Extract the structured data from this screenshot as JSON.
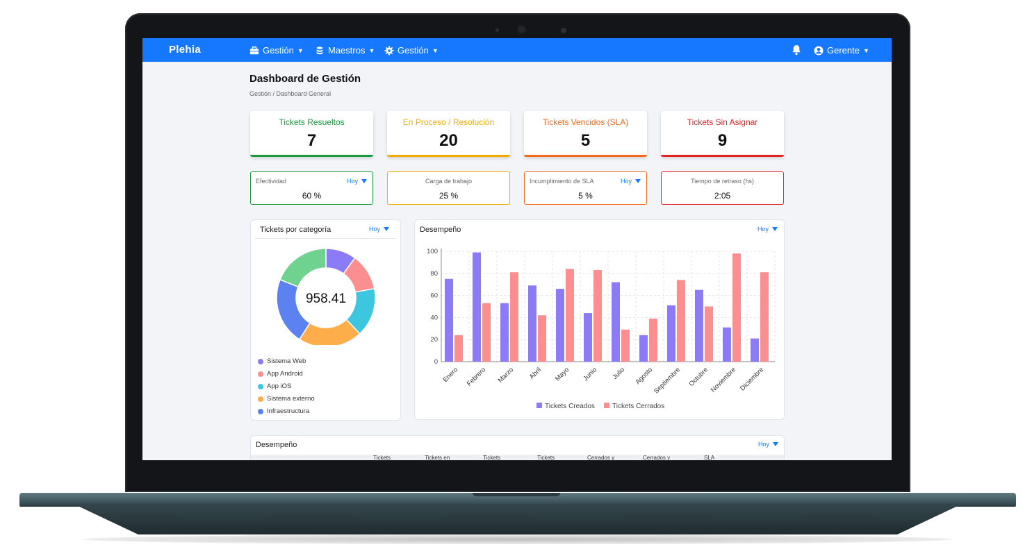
{
  "nav": {
    "brand": "Plehia",
    "items": [
      {
        "label": "Gestión",
        "icon": "briefcase-icon"
      },
      {
        "label": "Maestros",
        "icon": "database-icon"
      },
      {
        "label": "Gestión",
        "icon": "gear-icon"
      }
    ],
    "user": "Gerente"
  },
  "page": {
    "title": "Dashboard de Gestión",
    "breadcrumb": "Gestión / Dashboard General"
  },
  "kpis": [
    {
      "label": "Tickets Resueltos",
      "value": "7",
      "color": "#1a9a3e"
    },
    {
      "label": "En Proceso / Resolución",
      "value": "20",
      "color": "#f0ad00"
    },
    {
      "label": "Tickets Vencidos (SLA)",
      "value": "5",
      "color": "#f26a1b"
    },
    {
      "label": "Tickets Sin Asignar",
      "value": "9",
      "color": "#e02424"
    }
  ],
  "metrics": [
    {
      "label": "Efectividad",
      "value": "60 %",
      "filter": "Hoy",
      "color": "#1a9a3e"
    },
    {
      "label": "Carga de trabajo",
      "value": "25 %",
      "color": "#f0ad00"
    },
    {
      "label": "Incumplimiento de SLA",
      "value": "5 %",
      "filter": "Hoy",
      "color": "#f26a1b"
    },
    {
      "label": "Tiempo de retraso (hs)",
      "value": "2:05",
      "color": "#e02424"
    }
  ],
  "category_card": {
    "title": "Tickets por categoría",
    "filter": "Hoy",
    "center_value": "958.41",
    "legend": [
      {
        "label": "Sistema Web",
        "color": "#8b7cf6"
      },
      {
        "label": "App Android",
        "color": "#fb8f8f"
      },
      {
        "label": "App iOS",
        "color": "#3cc6df"
      },
      {
        "label": "Sistema externo",
        "color": "#fdae4b"
      },
      {
        "label": "Infraestructura",
        "color": "#5b82f0"
      }
    ]
  },
  "performance_card": {
    "title": "Desempeño",
    "filter": "Hoy"
  },
  "table_card": {
    "title": "Desempeño",
    "filter": "Hoy",
    "headers": [
      "Tickets",
      "Tickets en",
      "Tickets",
      "Tickets",
      "Cerrados y",
      "Cerrados y",
      "SLA"
    ]
  },
  "chart_data": [
    {
      "type": "pie",
      "labels": [
        "Sistema Web",
        "App Android",
        "App iOS",
        "Sistema externo",
        "Infraestructura",
        ""
      ],
      "values": [
        10,
        12,
        16,
        21,
        22,
        19
      ],
      "colors": [
        "#8b7cf6",
        "#fb8f8f",
        "#3cc6df",
        "#fdae4b",
        "#5b82f0",
        "#6fd28e"
      ],
      "center_label": "958.41"
    },
    {
      "type": "bar",
      "categories": [
        "Enero",
        "Febrero",
        "Marzo",
        "Abril",
        "Mayo",
        "Junio",
        "Julio",
        "Agosto",
        "Septiembre",
        "Octubre",
        "Noviembre",
        "Diciembre"
      ],
      "series": [
        {
          "name": "Tickets Creados",
          "color": "#8b7cf6",
          "values": [
            75,
            99,
            53,
            69,
            66,
            44,
            72,
            24,
            51,
            65,
            31,
            21
          ]
        },
        {
          "name": "Tickets Cerrados",
          "color": "#fb8f8f",
          "values": [
            24,
            53,
            81,
            42,
            84,
            83,
            29,
            39,
            74,
            50,
            98,
            81
          ]
        }
      ],
      "yticks": [
        "0",
        "20",
        "40",
        "60",
        "80",
        "100"
      ],
      "ylim": [
        0,
        100
      ],
      "grid": true,
      "legend": "bottom"
    }
  ]
}
